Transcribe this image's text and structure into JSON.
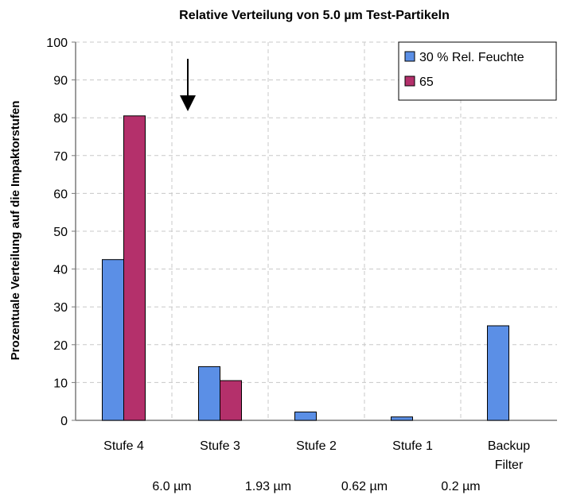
{
  "chart_data": {
    "type": "bar",
    "title": "Relative Verteilung von 5.0 µm Test-Partikeln",
    "xlabel": "",
    "ylabel": "Prozentuale Verteilung auf die Impaktorstufen",
    "ylim": [
      0,
      100
    ],
    "yticks": [
      0,
      10,
      20,
      30,
      40,
      50,
      60,
      70,
      80,
      90,
      100
    ],
    "grid": true,
    "legend_position": "top-right",
    "categories": [
      [
        "Stufe 4"
      ],
      [
        "Stufe 3"
      ],
      [
        "Stufe 2"
      ],
      [
        "Stufe 1"
      ],
      [
        "Backup",
        "Filter"
      ]
    ],
    "cut_sizes": [
      "6.0 µm",
      "1.93 µm",
      "0.62 µm",
      "0.2 µm"
    ],
    "series": [
      {
        "name": "30 % Rel. Feuchte",
        "color": "#5b8fe6",
        "values": [
          42.5,
          14.2,
          2.2,
          0.9,
          25.0
        ]
      },
      {
        "name": "65",
        "color": "#b4306b",
        "values": [
          80.5,
          10.5,
          0,
          0,
          0
        ]
      }
    ],
    "annotation": "arrow-down-icon"
  }
}
